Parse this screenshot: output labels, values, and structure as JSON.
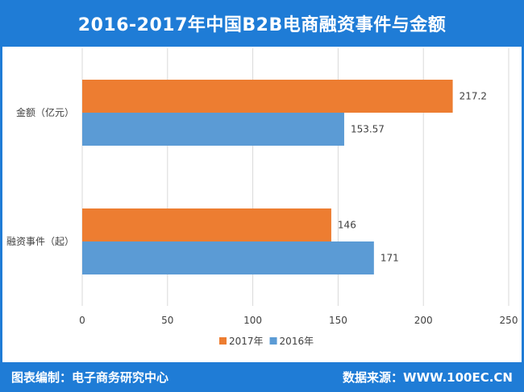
{
  "header": {
    "title": "2016-2017年中国B2B电商融资事件与金额"
  },
  "footer": {
    "left": "图表编制：电子商务研究中心",
    "right": "数据来源：WWW.100EC.CN"
  },
  "colors": {
    "frame": "#1f7cd6",
    "series_2017": "#ed7d31",
    "series_2016": "#5b9bd5",
    "grid": "#d9d9d9",
    "text": "#404040"
  },
  "chart_data": {
    "type": "bar",
    "orientation": "horizontal",
    "categories": [
      "金额（亿元）",
      "融资事件（起）"
    ],
    "series": [
      {
        "name": "2017年",
        "values": [
          217.2,
          146
        ],
        "labels": [
          "217.2",
          "146"
        ]
      },
      {
        "name": "2016年",
        "values": [
          153.57,
          171
        ],
        "labels": [
          "153.57",
          "171"
        ]
      }
    ],
    "xlim": [
      0,
      250
    ],
    "xticks": [
      "0",
      "50",
      "100",
      "150",
      "200",
      "250"
    ],
    "grid": true,
    "legend_position": "bottom"
  }
}
